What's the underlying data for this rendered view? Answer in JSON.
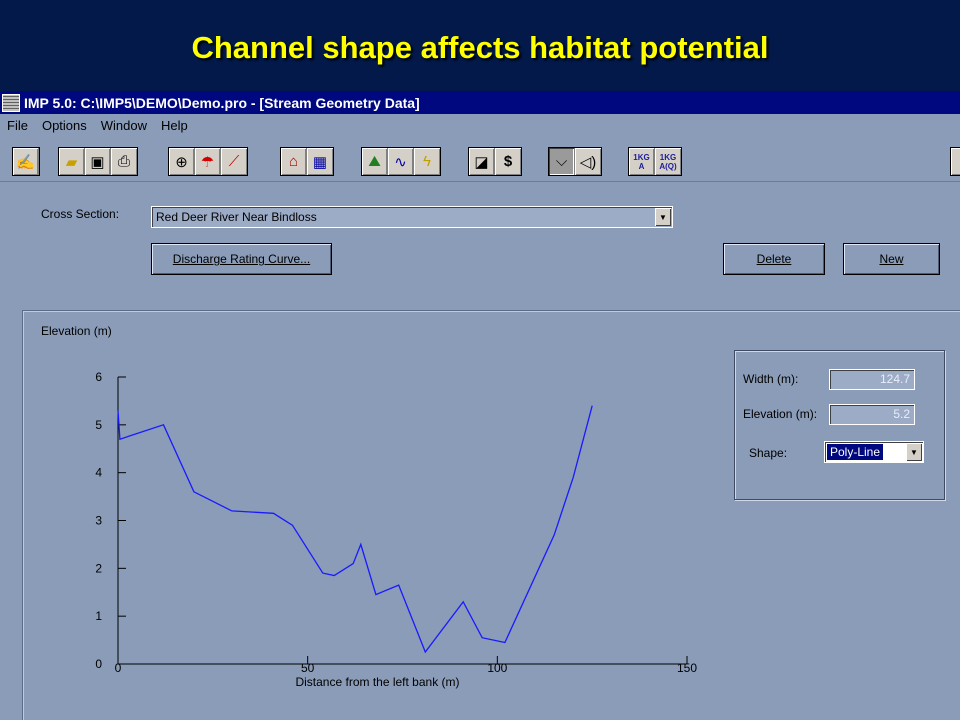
{
  "slide": {
    "title": "Channel shape affects habitat potential"
  },
  "window": {
    "title": "IMP 5.0: C:\\IMP5\\DEMO\\Demo.pro - [Stream Geometry Data]",
    "menu": [
      "File",
      "Options",
      "Window",
      "Help"
    ],
    "toolbar": {
      "kg_a_label": "A",
      "kg_aq_label": "A(Q)",
      "kg_label": "1KG"
    }
  },
  "form": {
    "cross_section_label": "Cross Section:",
    "cross_section_value": "Red Deer River Near Bindloss",
    "discharge_button": "Discharge Rating Curve...",
    "delete_button": "Delete",
    "new_button": "New"
  },
  "properties": {
    "width_label": "Width (m):",
    "width_value": "124.7",
    "elevation_label": "Elevation (m):",
    "elevation_value": "5.2",
    "shape_label": "Shape:",
    "shape_value": "Poly-Line"
  },
  "chart_data": {
    "type": "line",
    "xlabel": "Distance from the left bank (m)",
    "ylabel": "Elevation (m)",
    "xlim": [
      0,
      150
    ],
    "ylim": [
      0,
      6
    ],
    "x_ticks": [
      0,
      50,
      100,
      150
    ],
    "y_ticks": [
      0,
      1,
      2,
      3,
      4,
      5,
      6
    ],
    "line_color": "#1a1aff",
    "series": [
      {
        "x": [
          0,
          0.5,
          12,
          20,
          30,
          41,
          46,
          54,
          57,
          62,
          64,
          68,
          74,
          81,
          91,
          96,
          102,
          115,
          120,
          125
        ],
        "y": [
          5.3,
          4.7,
          5.0,
          3.6,
          3.2,
          3.15,
          2.9,
          1.9,
          1.85,
          2.1,
          2.5,
          1.45,
          1.65,
          0.25,
          1.3,
          0.55,
          0.45,
          2.7,
          3.9,
          5.4
        ]
      }
    ]
  }
}
